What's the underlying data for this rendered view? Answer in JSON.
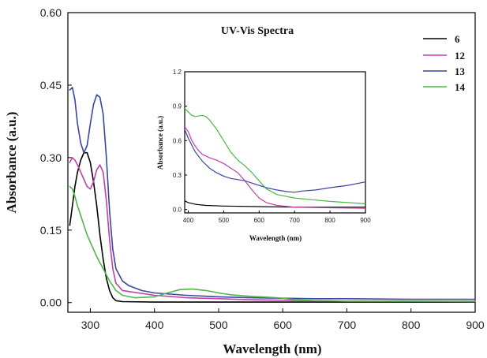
{
  "chart_data": [
    {
      "type": "line",
      "title": "UV-Vis Spectra",
      "xlabel": "Wavelength (nm)",
      "ylabel": "Absorbance (a.u.)",
      "xlim": [
        265,
        900
      ],
      "ylim": [
        -0.02,
        0.6
      ],
      "xticks": [
        300,
        400,
        500,
        600,
        700,
        800,
        900
      ],
      "yticks": [
        "0.00",
        "0.15",
        "0.30",
        "0.45",
        "0.60"
      ],
      "legend_position": "top-right",
      "series": [
        {
          "name": "6",
          "color": "#000000",
          "points": [
            [
              268,
              0.16
            ],
            [
              272,
              0.2
            ],
            [
              276,
              0.24
            ],
            [
              280,
              0.27
            ],
            [
              285,
              0.295
            ],
            [
              290,
              0.31
            ],
            [
              295,
              0.31
            ],
            [
              300,
              0.29
            ],
            [
              305,
              0.25
            ],
            [
              310,
              0.2
            ],
            [
              315,
              0.14
            ],
            [
              320,
              0.09
            ],
            [
              325,
              0.05
            ],
            [
              330,
              0.025
            ],
            [
              335,
              0.01
            ],
            [
              340,
              0.004
            ],
            [
              350,
              0.002
            ],
            [
              400,
              0.001
            ],
            [
              500,
              0.001
            ],
            [
              600,
              0.001
            ],
            [
              700,
              0.001
            ],
            [
              800,
              0.001
            ],
            [
              900,
              0.001
            ]
          ]
        },
        {
          "name": "12",
          "color": "#c43fa8",
          "points": [
            [
              268,
              0.29
            ],
            [
              272,
              0.3
            ],
            [
              276,
              0.295
            ],
            [
              280,
              0.285
            ],
            [
              285,
              0.27
            ],
            [
              290,
              0.255
            ],
            [
              295,
              0.24
            ],
            [
              300,
              0.235
            ],
            [
              305,
              0.25
            ],
            [
              310,
              0.275
            ],
            [
              315,
              0.285
            ],
            [
              320,
              0.27
            ],
            [
              325,
              0.21
            ],
            [
              330,
              0.13
            ],
            [
              335,
              0.07
            ],
            [
              340,
              0.04
            ],
            [
              350,
              0.025
            ],
            [
              400,
              0.015
            ],
            [
              450,
              0.01
            ],
            [
              500,
              0.008
            ],
            [
              550,
              0.006
            ],
            [
              600,
              0.005
            ],
            [
              650,
              0.004
            ],
            [
              700,
              0.003
            ],
            [
              800,
              0.003
            ],
            [
              900,
              0.002
            ]
          ]
        },
        {
          "name": "13",
          "color": "#3a45a6",
          "points": [
            [
              268,
              0.44
            ],
            [
              272,
              0.445
            ],
            [
              276,
              0.42
            ],
            [
              280,
              0.37
            ],
            [
              285,
              0.33
            ],
            [
              290,
              0.31
            ],
            [
              295,
              0.325
            ],
            [
              300,
              0.37
            ],
            [
              305,
              0.41
            ],
            [
              310,
              0.43
            ],
            [
              315,
              0.425
            ],
            [
              320,
              0.39
            ],
            [
              325,
              0.3
            ],
            [
              330,
              0.19
            ],
            [
              335,
              0.11
            ],
            [
              340,
              0.07
            ],
            [
              350,
              0.045
            ],
            [
              360,
              0.035
            ],
            [
              380,
              0.025
            ],
            [
              400,
              0.02
            ],
            [
              450,
              0.015
            ],
            [
              500,
              0.012
            ],
            [
              550,
              0.01
            ],
            [
              600,
              0.009
            ],
            [
              650,
              0.008
            ],
            [
              700,
              0.008
            ],
            [
              800,
              0.007
            ],
            [
              900,
              0.007
            ]
          ]
        },
        {
          "name": "14",
          "color": "#4cb848",
          "points": [
            [
              268,
              0.24
            ],
            [
              272,
              0.235
            ],
            [
              276,
              0.22
            ],
            [
              280,
              0.2
            ],
            [
              285,
              0.18
            ],
            [
              290,
              0.16
            ],
            [
              295,
              0.14
            ],
            [
              300,
              0.125
            ],
            [
              305,
              0.11
            ],
            [
              310,
              0.095
            ],
            [
              320,
              0.07
            ],
            [
              330,
              0.045
            ],
            [
              340,
              0.025
            ],
            [
              350,
              0.015
            ],
            [
              370,
              0.01
            ],
            [
              400,
              0.012
            ],
            [
              420,
              0.02
            ],
            [
              440,
              0.027
            ],
            [
              460,
              0.028
            ],
            [
              480,
              0.025
            ],
            [
              500,
              0.02
            ],
            [
              520,
              0.016
            ],
            [
              550,
              0.013
            ],
            [
              580,
              0.011
            ],
            [
              600,
              0.009
            ],
            [
              620,
              0.006
            ],
            [
              650,
              0.004
            ],
            [
              700,
              0.003
            ],
            [
              800,
              0.003
            ],
            [
              900,
              0.003
            ]
          ]
        }
      ]
    },
    {
      "type": "line",
      "xlabel": "Wavelength (nm)",
      "ylabel": "Absorbance (a.u.)",
      "xlim": [
        390,
        900
      ],
      "ylim": [
        -0.03,
        1.2
      ],
      "xticks": [
        400,
        500,
        600,
        700,
        800,
        900
      ],
      "yticks": [
        "0.0",
        "0.3",
        "0.6",
        "0.9",
        "1.2"
      ],
      "series": [
        {
          "name": "6",
          "color": "#000000",
          "points": [
            [
              390,
              0.075
            ],
            [
              400,
              0.06
            ],
            [
              420,
              0.045
            ],
            [
              450,
              0.035
            ],
            [
              500,
              0.03
            ],
            [
              600,
              0.025
            ],
            [
              700,
              0.02
            ],
            [
              800,
              0.02
            ],
            [
              900,
              0.02
            ]
          ]
        },
        {
          "name": "12",
          "color": "#c43fa8",
          "points": [
            [
              390,
              0.72
            ],
            [
              400,
              0.68
            ],
            [
              410,
              0.6
            ],
            [
              420,
              0.55
            ],
            [
              430,
              0.51
            ],
            [
              440,
              0.48
            ],
            [
              460,
              0.45
            ],
            [
              480,
              0.43
            ],
            [
              500,
              0.4
            ],
            [
              520,
              0.36
            ],
            [
              540,
              0.32
            ],
            [
              560,
              0.25
            ],
            [
              580,
              0.17
            ],
            [
              600,
              0.1
            ],
            [
              620,
              0.06
            ],
            [
              650,
              0.035
            ],
            [
              700,
              0.02
            ],
            [
              800,
              0.015
            ],
            [
              900,
              0.01
            ]
          ]
        },
        {
          "name": "13",
          "color": "#3a45a6",
          "points": [
            [
              390,
              0.7
            ],
            [
              400,
              0.62
            ],
            [
              420,
              0.5
            ],
            [
              440,
              0.42
            ],
            [
              460,
              0.36
            ],
            [
              480,
              0.32
            ],
            [
              500,
              0.29
            ],
            [
              520,
              0.27
            ],
            [
              540,
              0.26
            ],
            [
              560,
              0.25
            ],
            [
              580,
              0.23
            ],
            [
              600,
              0.21
            ],
            [
              620,
              0.19
            ],
            [
              650,
              0.17
            ],
            [
              680,
              0.155
            ],
            [
              700,
              0.15
            ],
            [
              720,
              0.16
            ],
            [
              740,
              0.165
            ],
            [
              760,
              0.17
            ],
            [
              800,
              0.19
            ],
            [
              850,
              0.21
            ],
            [
              900,
              0.24
            ]
          ]
        },
        {
          "name": "14",
          "color": "#4cb848",
          "points": [
            [
              390,
              0.88
            ],
            [
              400,
              0.85
            ],
            [
              410,
              0.82
            ],
            [
              420,
              0.81
            ],
            [
              440,
              0.82
            ],
            [
              450,
              0.81
            ],
            [
              460,
              0.78
            ],
            [
              480,
              0.7
            ],
            [
              500,
              0.6
            ],
            [
              520,
              0.5
            ],
            [
              540,
              0.43
            ],
            [
              560,
              0.38
            ],
            [
              580,
              0.32
            ],
            [
              600,
              0.25
            ],
            [
              620,
              0.18
            ],
            [
              650,
              0.13
            ],
            [
              700,
              0.1
            ],
            [
              750,
              0.085
            ],
            [
              800,
              0.07
            ],
            [
              850,
              0.06
            ],
            [
              900,
              0.05
            ]
          ]
        }
      ]
    }
  ]
}
